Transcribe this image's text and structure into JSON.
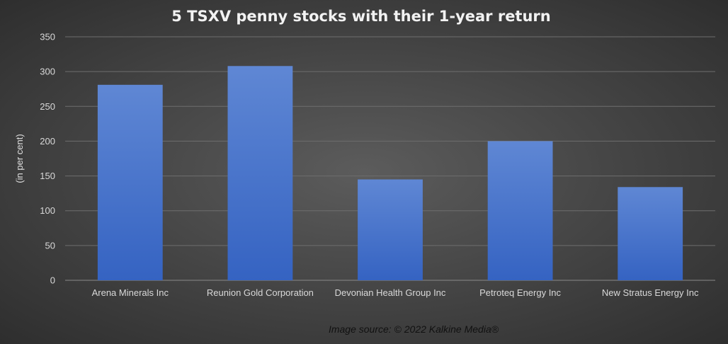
{
  "chart_data": {
    "type": "bar",
    "title": "5 TSXV penny stocks with their 1-year return",
    "ylabel": "(in per cent)",
    "xlabel": "",
    "categories": [
      "Arena Minerals Inc",
      "Reunion Gold Corporation",
      "Devonian Health Group Inc",
      "Petroteq Energy Inc",
      "New Stratus Energy Inc"
    ],
    "values": [
      281,
      308,
      145,
      200,
      134
    ],
    "ylim": [
      0,
      350
    ],
    "yticks": [
      0,
      50,
      100,
      150,
      200,
      250,
      300,
      350
    ],
    "grid": true,
    "legend": "none",
    "bar_color": "#4a7bd0",
    "bar_color_top": "#5f87d4",
    "bar_color_bottom": "#3563c2"
  },
  "footer": {
    "source": "Image source: © 2022 Kalkine Media®"
  }
}
